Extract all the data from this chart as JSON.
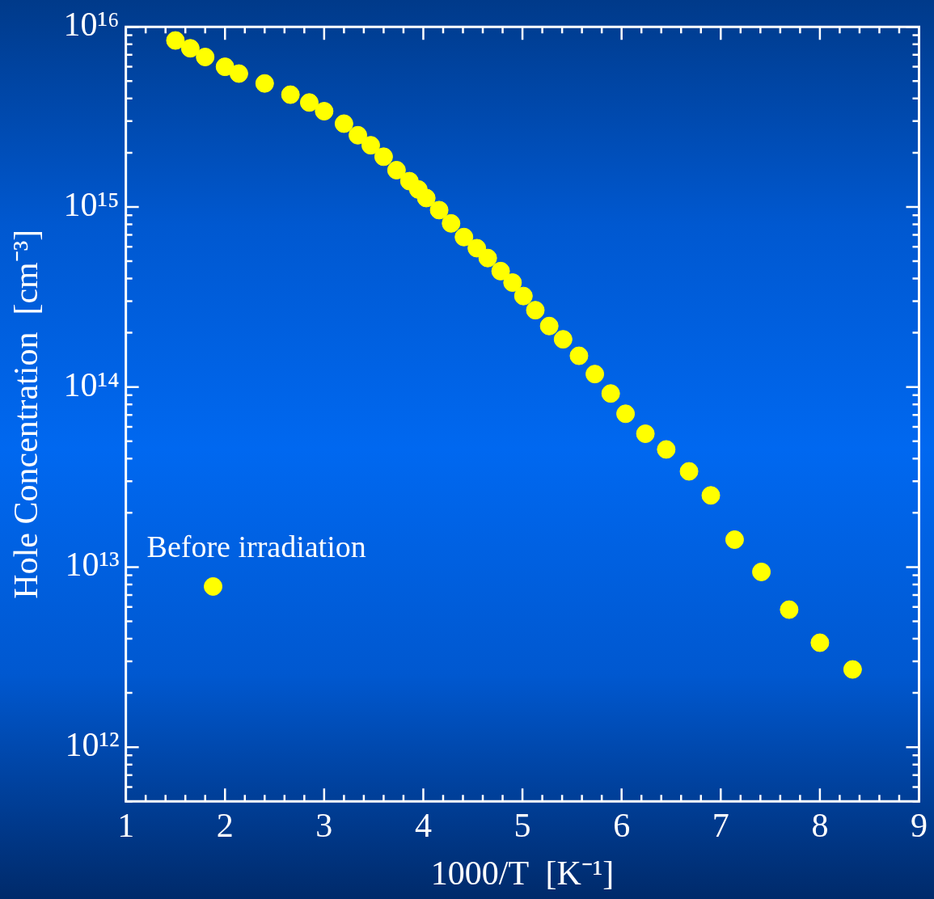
{
  "chart_data": {
    "type": "scatter",
    "xlabel": "1000/T  [K⁻¹]",
    "ylabel": "Hole Concentration  [cm⁻³]",
    "log": "y",
    "grid": false,
    "legend": false,
    "marker": "circle",
    "xlim": [
      1,
      9
    ],
    "ylim": [
      500000000000.0,
      1e+16
    ],
    "xticks": [
      1,
      {
        "value": 1.2,
        "label": null
      },
      {
        "value": 1.4,
        "label": null
      },
      {
        "value": 1.6,
        "label": null
      },
      {
        "value": 1.8,
        "label": null
      },
      2,
      {
        "value": 2.2,
        "label": null
      },
      {
        "value": 2.4,
        "label": null
      },
      {
        "value": 2.6,
        "label": null
      },
      {
        "value": 2.8,
        "label": null
      },
      3,
      {
        "value": 3.2,
        "label": null
      },
      {
        "value": 3.4,
        "label": null
      },
      {
        "value": 3.6,
        "label": null
      },
      {
        "value": 3.8,
        "label": null
      },
      4,
      {
        "value": 4.2,
        "label": null
      },
      {
        "value": 4.4,
        "label": null
      },
      {
        "value": 4.6,
        "label": null
      },
      {
        "value": 4.8,
        "label": null
      },
      5,
      {
        "value": 5.2,
        "label": null
      },
      {
        "value": 5.4,
        "label": null
      },
      {
        "value": 5.6,
        "label": null
      },
      {
        "value": 5.8,
        "label": null
      },
      6,
      {
        "value": 6.2,
        "label": null
      },
      {
        "value": 6.4,
        "label": null
      },
      {
        "value": 6.6,
        "label": null
      },
      {
        "value": 6.8,
        "label": null
      },
      7,
      {
        "value": 7.2,
        "label": null
      },
      {
        "value": 7.4,
        "label": null
      },
      {
        "value": 7.6,
        "label": null
      },
      {
        "value": 7.8,
        "label": null
      },
      8,
      {
        "value": 8.2,
        "label": null
      },
      {
        "value": 8.4,
        "label": null
      },
      {
        "value": 8.6,
        "label": null
      },
      {
        "value": 8.8,
        "label": null
      },
      9
    ],
    "yticks": [
      {
        "value": 500000000000.0,
        "label": null
      },
      {
        "value": 600000000000.0,
        "label": null
      },
      {
        "value": 700000000000.0,
        "label": null
      },
      {
        "value": 800000000000.0,
        "label": null
      },
      {
        "value": 900000000000.0,
        "label": null
      },
      {
        "value": 1000000000000.0,
        "label": "10¹²"
      },
      {
        "value": 2000000000000.0,
        "label": null
      },
      {
        "value": 3000000000000.0,
        "label": null
      },
      {
        "value": 4000000000000.0,
        "label": null
      },
      {
        "value": 5000000000000.0,
        "label": null
      },
      {
        "value": 6000000000000.0,
        "label": null
      },
      {
        "value": 7000000000000.0,
        "label": null
      },
      {
        "value": 8000000000000.0,
        "label": null
      },
      {
        "value": 9000000000000.0,
        "label": null
      },
      {
        "value": 10000000000000.0,
        "label": "10¹³"
      },
      {
        "value": 20000000000000.0,
        "label": null
      },
      {
        "value": 30000000000000.0,
        "label": null
      },
      {
        "value": 40000000000000.0,
        "label": null
      },
      {
        "value": 50000000000000.0,
        "label": null
      },
      {
        "value": 60000000000000.0,
        "label": null
      },
      {
        "value": 70000000000000.0,
        "label": null
      },
      {
        "value": 80000000000000.0,
        "label": null
      },
      {
        "value": 90000000000000.0,
        "label": null
      },
      {
        "value": 100000000000000.0,
        "label": "10¹⁴"
      },
      {
        "value": 200000000000000.0,
        "label": null
      },
      {
        "value": 300000000000000.0,
        "label": null
      },
      {
        "value": 400000000000000.0,
        "label": null
      },
      {
        "value": 500000000000000.0,
        "label": null
      },
      {
        "value": 600000000000000.0,
        "label": null
      },
      {
        "value": 700000000000000.0,
        "label": null
      },
      {
        "value": 800000000000000.0,
        "label": null
      },
      {
        "value": 900000000000000.0,
        "label": null
      },
      {
        "value": 1000000000000000.0,
        "label": "10¹⁵"
      },
      {
        "value": 2000000000000000.0,
        "label": null
      },
      {
        "value": 3000000000000000.0,
        "label": null
      },
      {
        "value": 4000000000000000.0,
        "label": null
      },
      {
        "value": 5000000000000000.0,
        "label": null
      },
      {
        "value": 6000000000000000.0,
        "label": null
      },
      {
        "value": 7000000000000000.0,
        "label": null
      },
      {
        "value": 8000000000000000.0,
        "label": null
      },
      {
        "value": 9000000000000000.0,
        "label": null
      },
      {
        "value": 1e+16,
        "label": "10¹⁶"
      }
    ],
    "series": [
      {
        "color": "#ffff00",
        "x": [
          1.5,
          1.65,
          1.8,
          2.0,
          2.14,
          2.4,
          2.66,
          2.85,
          3.0,
          3.2,
          3.34,
          3.47,
          3.6,
          3.73,
          3.86,
          3.95,
          4.03,
          4.16,
          4.28,
          4.41,
          4.54,
          4.65,
          4.78,
          4.9,
          5.01,
          5.13,
          5.27,
          5.41,
          5.57,
          5.73,
          5.89,
          6.04,
          6.24,
          6.45,
          6.68,
          6.9,
          7.14,
          7.41,
          7.69,
          8.0,
          8.33
        ],
        "values": [
          8400000000000000.0,
          7600000000000000.0,
          6800000000000000.0,
          6000000000000000.0,
          5500000000000000.0,
          4850000000000000.0,
          4200000000000000.0,
          3800000000000000.0,
          3400000000000000.0,
          2900000000000000.0,
          2500000000000000.0,
          2200000000000000.0,
          1900000000000000.0,
          1600000000000000.0,
          1390000000000000.0,
          1250000000000000.0,
          1120000000000000.0,
          960000000000000.0,
          810000000000000.0,
          680000000000000.0,
          590000000000000.0,
          520000000000000.0,
          440000000000000.0,
          380000000000000.0,
          320000000000000.0,
          267000000000000.0,
          218000000000000.0,
          184000000000000.0,
          149000000000000.0,
          118000000000000.0,
          92000000000000.0,
          71000000000000.0,
          55000000000000.0,
          45000000000000.0,
          34000000000000.0,
          25000000000000.0,
          14200000000000.0,
          9400000000000.0,
          5800000000000.0,
          3800000000000.0,
          2700000000000.0
        ]
      },
      {
        "color": "#ffff00",
        "x": [
          1.88
        ],
        "values": [
          7800000000000.0
        ]
      }
    ],
    "annotations": [
      {
        "text": "Before irradiation",
        "x": 1.88,
        "y": 7800000000000.0
      }
    ]
  }
}
